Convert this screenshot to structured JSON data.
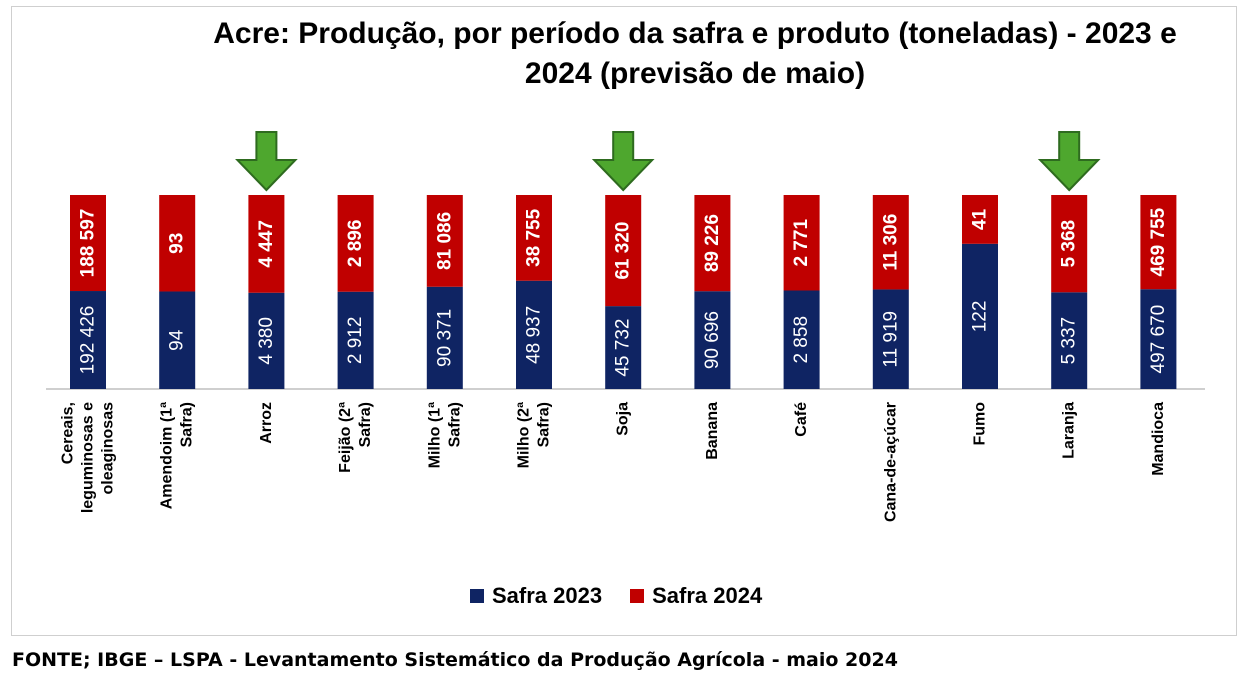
{
  "colors": {
    "safra_2023": "#0f2463",
    "safra_2024": "#c00000",
    "arrow": "#4ea72e",
    "arrow_stroke": "#2e6b1f"
  },
  "legend": {
    "safra_2023": "Safra 2023",
    "safra_2024": "Safra 2024"
  },
  "footer": {
    "source": "FONTE; IBGE – LSPA - Levantamento Sistemático da Produção Agrícola - maio 2024"
  },
  "chart_data": {
    "type": "bar",
    "stacked": "percent",
    "title": "Acre: Produção, por período da safra e produto (toneladas) - 2023 e 2024 (previsão de maio)",
    "categories": [
      "Cereais, leguminosas e oleaginosas",
      "Amendoim (1ª Safra)",
      "Arroz",
      "Feijão (2ª Safra)",
      "Milho (1ª Safra)",
      "Milho (2ª Safra)",
      "Soja",
      "Banana",
      "Café",
      "Cana-de-açúcar",
      "Fumo",
      "Laranja",
      "Mandioca"
    ],
    "series": [
      {
        "name": "Safra 2023",
        "values": [
          192426,
          94,
          4380,
          2912,
          90371,
          48937,
          45732,
          90696,
          2858,
          11919,
          122,
          5337,
          497670
        ],
        "labels": [
          "192 426",
          "94",
          "4 380",
          "2 912",
          "90 371",
          "48 937",
          "45 732",
          "90 696",
          "2 858",
          "11 919",
          "122",
          "5 337",
          "497 670"
        ]
      },
      {
        "name": "Safra 2024",
        "values": [
          188597,
          93,
          4447,
          2896,
          81086,
          38755,
          61320,
          89226,
          2771,
          11306,
          41,
          5368,
          469755
        ],
        "labels": [
          "188 597",
          "93",
          "4 447",
          "2 896",
          "81 086",
          "38 755",
          "61 320",
          "89 226",
          "2 771",
          "11 306",
          "41",
          "5 368",
          "469 755"
        ]
      }
    ],
    "highlighted": [
      "Arroz",
      "Soja",
      "Laranja"
    ],
    "legend_position": "bottom",
    "grid": false
  }
}
